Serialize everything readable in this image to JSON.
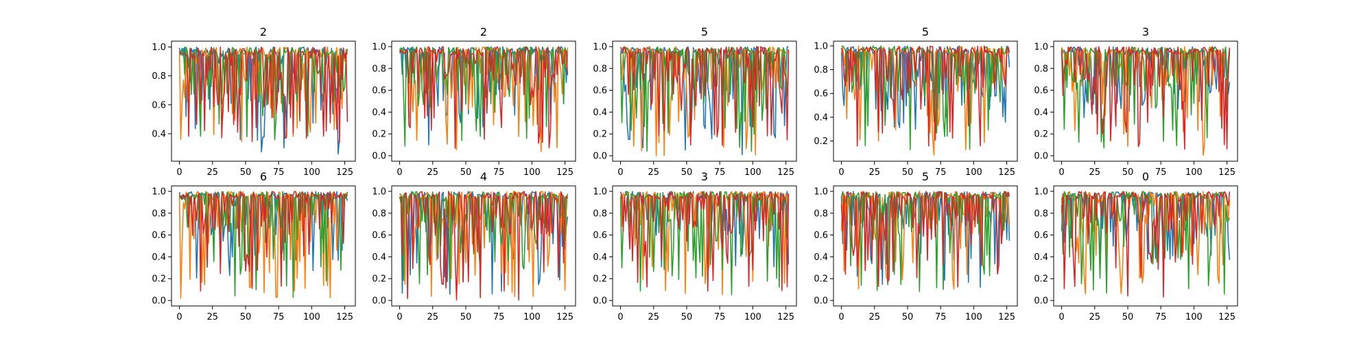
{
  "chart_data": [
    {
      "type": "line",
      "title": "2",
      "xlim": [
        -6,
        133
      ],
      "ylim": [
        0.21,
        1.04
      ],
      "xticks": [
        0,
        25,
        50,
        75,
        100,
        125
      ],
      "yticks": [
        0.4,
        0.6,
        0.8,
        1.0
      ],
      "ytick_labels": [
        "0.4",
        "0.6",
        "0.8",
        "1.0"
      ],
      "min_values": [
        0.26,
        0.33,
        0.28,
        0.33
      ]
    },
    {
      "type": "line",
      "title": "2",
      "xlim": [
        -6,
        133
      ],
      "ylim": [
        -0.05,
        1.05
      ],
      "xticks": [
        0,
        25,
        50,
        75,
        100,
        125
      ],
      "yticks": [
        0.0,
        0.2,
        0.4,
        0.6,
        0.8,
        1.0
      ],
      "ytick_labels": [
        "0.0",
        "0.2",
        "0.4",
        "0.6",
        "0.8",
        "1.0"
      ],
      "min_values": [
        0.05,
        0.02,
        0.0,
        0.04
      ]
    },
    {
      "type": "line",
      "title": "5",
      "xlim": [
        -6,
        133
      ],
      "ylim": [
        -0.05,
        1.05
      ],
      "xticks": [
        0,
        25,
        50,
        75,
        100,
        125
      ],
      "yticks": [
        0.0,
        0.2,
        0.4,
        0.6,
        0.8,
        1.0
      ],
      "ytick_labels": [
        "0.0",
        "0.2",
        "0.4",
        "0.6",
        "0.8",
        "1.0"
      ],
      "min_values": [
        0.0,
        0.0,
        0.0,
        0.08
      ]
    },
    {
      "type": "line",
      "title": "5",
      "xlim": [
        -6,
        133
      ],
      "ylim": [
        0.03,
        1.04
      ],
      "xticks": [
        0,
        25,
        50,
        75,
        100,
        125
      ],
      "yticks": [
        0.2,
        0.4,
        0.6,
        0.8,
        1.0
      ],
      "ytick_labels": [
        "0.2",
        "0.4",
        "0.6",
        "0.8",
        "1.0"
      ],
      "min_values": [
        0.3,
        0.05,
        0.1,
        0.15
      ]
    },
    {
      "type": "line",
      "title": "3",
      "xlim": [
        -6,
        133
      ],
      "ylim": [
        -0.05,
        1.05
      ],
      "xticks": [
        0,
        25,
        50,
        75,
        100,
        125
      ],
      "yticks": [
        0.0,
        0.2,
        0.4,
        0.6,
        0.8,
        1.0
      ],
      "ytick_labels": [
        "0.0",
        "0.2",
        "0.4",
        "0.6",
        "0.8",
        "1.0"
      ],
      "min_values": [
        0.3,
        0.0,
        0.0,
        0.01
      ]
    },
    {
      "type": "line",
      "title": "6",
      "xlim": [
        -6,
        133
      ],
      "ylim": [
        -0.05,
        1.05
      ],
      "xticks": [
        0,
        25,
        50,
        75,
        100,
        125
      ],
      "yticks": [
        0.0,
        0.2,
        0.4,
        0.6,
        0.8,
        1.0
      ],
      "ytick_labels": [
        "0.0",
        "0.2",
        "0.4",
        "0.6",
        "0.8",
        "1.0"
      ],
      "min_values": [
        0.2,
        0.0,
        0.0,
        0.0
      ]
    },
    {
      "type": "line",
      "title": "4",
      "xlim": [
        -6,
        133
      ],
      "ylim": [
        -0.05,
        1.05
      ],
      "xticks": [
        0,
        25,
        50,
        75,
        100,
        125
      ],
      "yticks": [
        0.0,
        0.2,
        0.4,
        0.6,
        0.8,
        1.0
      ],
      "ytick_labels": [
        "0.0",
        "0.2",
        "0.4",
        "0.6",
        "0.8",
        "1.0"
      ],
      "min_values": [
        0.05,
        0.0,
        0.15,
        0.0
      ]
    },
    {
      "type": "line",
      "title": "3",
      "xlim": [
        -6,
        133
      ],
      "ylim": [
        -0.05,
        1.05
      ],
      "xticks": [
        0,
        25,
        50,
        75,
        100,
        125
      ],
      "yticks": [
        0.0,
        0.2,
        0.4,
        0.6,
        0.8,
        1.0
      ],
      "ytick_labels": [
        "0.0",
        "0.2",
        "0.4",
        "0.6",
        "0.8",
        "1.0"
      ],
      "min_values": [
        0.3,
        0.02,
        0.05,
        0.05
      ]
    },
    {
      "type": "line",
      "title": "5",
      "xlim": [
        -6,
        133
      ],
      "ylim": [
        -0.05,
        1.05
      ],
      "xticks": [
        0,
        25,
        50,
        75,
        100,
        125
      ],
      "yticks": [
        0.0,
        0.2,
        0.4,
        0.6,
        0.8,
        1.0
      ],
      "ytick_labels": [
        "0.0",
        "0.2",
        "0.4",
        "0.6",
        "0.8",
        "1.0"
      ],
      "min_values": [
        0.09,
        0.1,
        0.07,
        0.12
      ]
    },
    {
      "type": "line",
      "title": "0",
      "xlim": [
        -6,
        133
      ],
      "ylim": [
        -0.05,
        1.05
      ],
      "xticks": [
        0,
        25,
        50,
        75,
        100,
        125
      ],
      "yticks": [
        0.0,
        0.2,
        0.4,
        0.6,
        0.8,
        1.0
      ],
      "ytick_labels": [
        "0.0",
        "0.2",
        "0.4",
        "0.6",
        "0.8",
        "1.0"
      ],
      "min_values": [
        0.2,
        0.05,
        0.05,
        0.0
      ]
    }
  ],
  "series_colors": [
    "#1f77b4",
    "#ff7f0e",
    "#2ca02c",
    "#d62728"
  ],
  "points_per_series": 128
}
